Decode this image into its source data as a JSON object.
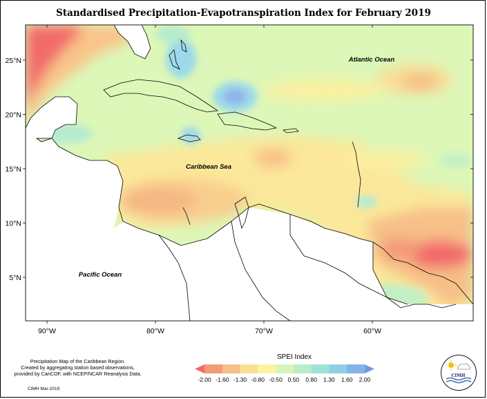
{
  "title": "Standardised Precipitation-Evapotranspiration Index for February 2019",
  "axes": {
    "x_ticks": [
      {
        "lon": -90,
        "label": "90°W"
      },
      {
        "lon": -80,
        "label": "80°W"
      },
      {
        "lon": -70,
        "label": "70°W"
      },
      {
        "lon": -60,
        "label": "60°W"
      }
    ],
    "y_ticks": [
      {
        "lat": 25,
        "label": "25°N"
      },
      {
        "lat": 20,
        "label": "20°N"
      },
      {
        "lat": 15,
        "label": "15°N"
      },
      {
        "lat": 10,
        "label": "10°N"
      },
      {
        "lat": 5,
        "label": "5°N"
      }
    ]
  },
  "labels": {
    "atlantic": "Atlantic Ocean",
    "caribbean": "Caribbean Sea",
    "pacific": "Pacific Ocean"
  },
  "credit_lines": [
    "Precipitation Map of the Caribbean Region.",
    "Created by aggregating station based observations,",
    "provided by CariCOF, with NCEP/NCAR Reanalysis Data."
  ],
  "date": "CIMH Mar-2019",
  "legend": {
    "title": "SPEI Index",
    "bins": [
      {
        "color": "#f36a6a"
      },
      {
        "color": "#f39a78"
      },
      {
        "color": "#f6c088"
      },
      {
        "color": "#f9df96"
      },
      {
        "color": "#fbf5a2"
      },
      {
        "color": "#d6f5b8"
      },
      {
        "color": "#b8edc8"
      },
      {
        "color": "#9fe2d6"
      },
      {
        "color": "#8ed0e4"
      },
      {
        "color": "#84b4e6"
      },
      {
        "color": "#7a94e0"
      }
    ],
    "tick_labels": [
      "-2.00",
      "-1.60",
      "-1.30",
      "-0.80",
      "-0.50",
      "0.50",
      "0.80",
      "1.30",
      "1.60",
      "2.00"
    ]
  },
  "logo_text": "CIMH",
  "colors": {
    "background_near_normal": "#dcf7b8",
    "dry_severe": "#f26b6b",
    "dry_moderate": "#f8c98c",
    "dry_mild": "#fbe79a",
    "wet_mild": "#b6ebd0",
    "wet_moderate": "#9cd9ea",
    "wet_strong": "#8fb2ec"
  }
}
